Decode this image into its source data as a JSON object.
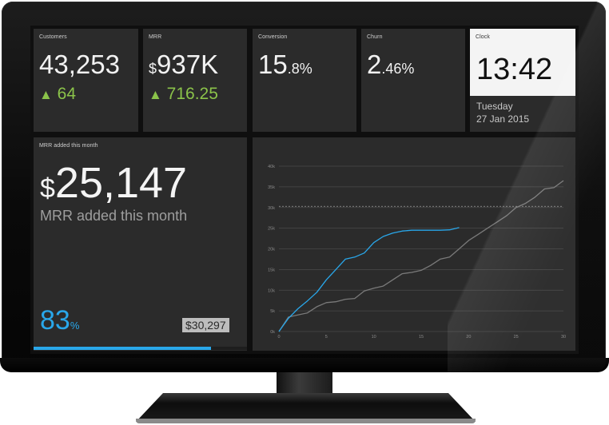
{
  "dashboard": {
    "customers": {
      "title": "Customers",
      "value": "43,253",
      "delta": "64",
      "delta_dir": "up"
    },
    "mrr": {
      "title": "MRR",
      "currency": "$",
      "value": "937K",
      "delta": "716.25",
      "delta_dir": "up"
    },
    "conversion": {
      "title": "Conversion",
      "value_int": "15",
      "value_dec": ".8%"
    },
    "churn": {
      "title": "Churn",
      "value_int": "2",
      "value_dec": ".46%"
    },
    "clock": {
      "title": "Clock",
      "time": "13:42",
      "day": "Tuesday",
      "date": "27 Jan 2015"
    },
    "mrr_month": {
      "title": "MRR added this month",
      "currency": "$",
      "value": "25,147",
      "subtitle": "MRR added this month",
      "percent": "83",
      "percent_sign": "%",
      "progress": 0.83,
      "target": "$30,297"
    }
  },
  "colors": {
    "accent": "#29a7ea",
    "positive": "#8bc34a",
    "widget_bg": "#2b2b2b",
    "comparison_line": "#7a7a7a"
  },
  "chart_data": {
    "type": "line",
    "title": "",
    "xlabel": "",
    "ylabel": "",
    "xlim": [
      0,
      30
    ],
    "ylim": [
      0,
      40000
    ],
    "x_ticks": [
      0,
      5,
      10,
      15,
      20,
      25,
      30
    ],
    "y_ticks": [
      0,
      5000,
      10000,
      15000,
      20000,
      25000,
      30000,
      35000,
      40000
    ],
    "x_tick_labels": [
      "0",
      "5",
      "10",
      "15",
      "20",
      "25",
      "30"
    ],
    "y_tick_labels": [
      "0k",
      "5k",
      "10k",
      "15k",
      "20k",
      "25k",
      "30k",
      "35k",
      "40k"
    ],
    "grid": true,
    "target_line": 30297,
    "series": [
      {
        "color": "#29a7ea",
        "x": [
          0,
          1,
          2,
          3,
          4,
          5,
          6,
          7,
          8,
          9,
          10,
          11,
          12,
          13,
          14,
          15,
          16,
          17,
          18,
          19
        ],
        "y": [
          0,
          3200,
          5500,
          7400,
          9500,
          12500,
          15000,
          17500,
          18000,
          19000,
          21500,
          23000,
          23800,
          24300,
          24500,
          24500,
          24500,
          24500,
          24600,
          25147
        ]
      },
      {
        "color": "#7a7a7a",
        "x": [
          0,
          1,
          2,
          3,
          4,
          5,
          6,
          7,
          8,
          9,
          10,
          11,
          12,
          13,
          14,
          15,
          16,
          17,
          18,
          19,
          20,
          21,
          22,
          23,
          24,
          25,
          26,
          27,
          28,
          29,
          30
        ],
        "y": [
          0,
          3500,
          4000,
          4500,
          6000,
          7000,
          7200,
          7800,
          8000,
          9800,
          10500,
          11000,
          12500,
          14000,
          14300,
          14800,
          16000,
          17500,
          18000,
          20000,
          22000,
          23500,
          25000,
          26500,
          28000,
          30000,
          31000,
          32500,
          34500,
          34800,
          36500
        ]
      }
    ]
  }
}
